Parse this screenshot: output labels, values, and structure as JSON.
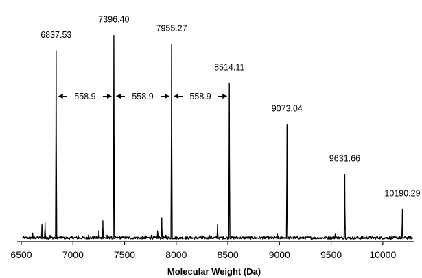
{
  "chart_data": {
    "type": "line",
    "title": "",
    "xlabel": "Molecular Weight (Da)",
    "ylabel": "",
    "xlim": [
      6500,
      10300
    ],
    "ylim": [
      0,
      1.05
    ],
    "xticks": [
      6500,
      7000,
      7500,
      8000,
      8500,
      9000,
      9500,
      10000
    ],
    "grid": false,
    "legend": "none",
    "peaks": [
      {
        "x": 6837.53,
        "label": "6837.53",
        "y": 0.88
      },
      {
        "x": 7396.4,
        "label": "7396.40",
        "y": 0.95
      },
      {
        "x": 7955.27,
        "label": "7955.27",
        "y": 0.91
      },
      {
        "x": 8514.11,
        "label": "8514.11",
        "y": 0.73
      },
      {
        "x": 9073.04,
        "label": "9073.04",
        "y": 0.54
      },
      {
        "x": 9631.66,
        "label": "9631.66",
        "y": 0.31
      },
      {
        "x": 10190.29,
        "label": "10190.29",
        "y": 0.15
      }
    ],
    "spacings": [
      {
        "from": 6837.53,
        "to": 7396.4,
        "label": "558.9",
        "y": 0.67
      },
      {
        "from": 7396.4,
        "to": 7955.27,
        "label": "558.9",
        "y": 0.67
      },
      {
        "from": 7955.27,
        "to": 8514.11,
        "label": "558.9",
        "y": 0.67
      }
    ],
    "minor_peaks": [
      [
        6610,
        0.04
      ],
      [
        6700,
        0.08
      ],
      [
        6730,
        0.09
      ],
      [
        6780,
        0.03
      ],
      [
        6950,
        0.02
      ],
      [
        7050,
        0.03
      ],
      [
        7150,
        0.03
      ],
      [
        7250,
        0.05
      ],
      [
        7290,
        0.095
      ],
      [
        7330,
        0.03
      ],
      [
        7500,
        0.02
      ],
      [
        7600,
        0.02
      ],
      [
        7700,
        0.03
      ],
      [
        7760,
        0.03
      ],
      [
        7820,
        0.05
      ],
      [
        7860,
        0.11
      ],
      [
        7900,
        0.03
      ],
      [
        8050,
        0.02
      ],
      [
        8150,
        0.02
      ],
      [
        8250,
        0.03
      ],
      [
        8320,
        0.03
      ],
      [
        8400,
        0.08
      ],
      [
        8700,
        0.02
      ],
      [
        8850,
        0.02
      ],
      [
        8980,
        0.035
      ],
      [
        9150,
        0.02
      ],
      [
        9350,
        0.02
      ],
      [
        9540,
        0.035
      ],
      [
        9800,
        0.02
      ],
      [
        10050,
        0.02
      ]
    ]
  }
}
